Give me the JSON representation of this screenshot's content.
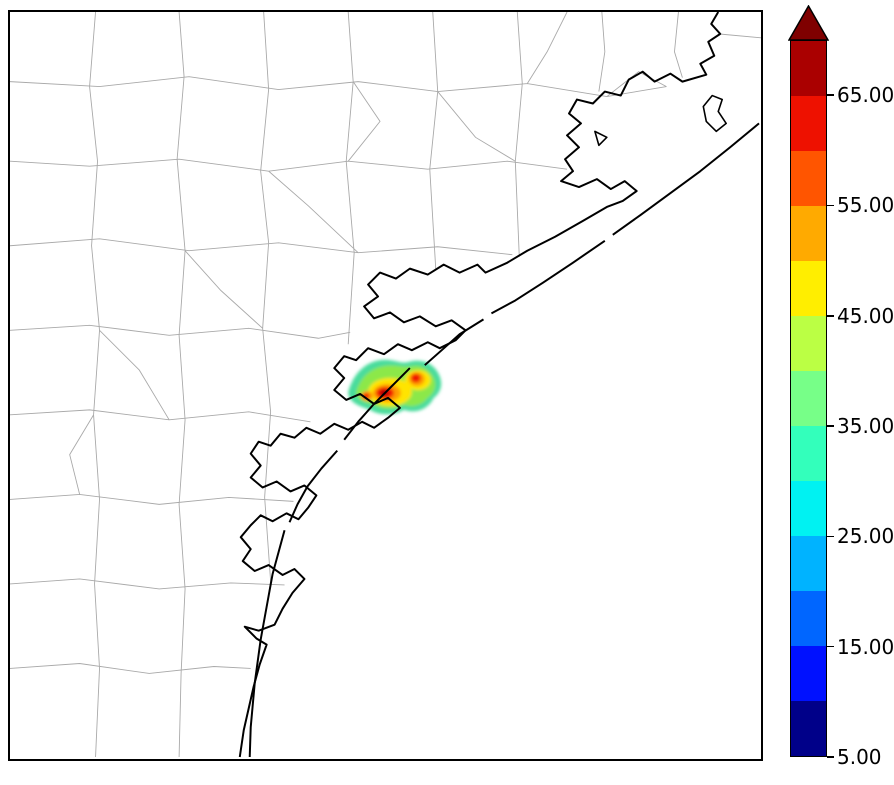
{
  "figure": {
    "background": "#ffffff"
  },
  "map": {
    "frame_color": "#000000",
    "county_line_color": "#a9a9a9",
    "coastline_color": "#000000",
    "land_fill": "#ffffff",
    "sea_fill": "#ffffff"
  },
  "plume": {
    "colors": {
      "outer": "#4adc9c",
      "green": "#8ce84a",
      "yellow": "#ffe400",
      "orange": "#ff9c00",
      "red": "#f01800",
      "core": "#a50000"
    }
  },
  "colorbar": {
    "tick_labels": [
      "65.00",
      "55.00",
      "45.00",
      "35.00",
      "25.00",
      "15.00",
      "5.00"
    ],
    "segment_colors_bottom_to_top": [
      "#000089",
      "#0011ff",
      "#0066ff",
      "#00b3ff",
      "#00f2f2",
      "#33ffbb",
      "#77ff88",
      "#bbff44",
      "#ffee00",
      "#ffaa00",
      "#ff5500",
      "#ee1100",
      "#aa0000"
    ],
    "arrow_color": "#7f0000",
    "outline_color": "#000000"
  },
  "chart_data": {
    "type": "heatmap",
    "title": "",
    "colorbar_tick_labels": [
      "65.00",
      "55.00",
      "45.00",
      "35.00",
      "25.00",
      "15.00",
      "5.00"
    ],
    "colorbar_tick_values": [
      65,
      55,
      45,
      35,
      25,
      15,
      5
    ],
    "value_range": [
      5,
      70
    ],
    "legend_position": "right"
  }
}
